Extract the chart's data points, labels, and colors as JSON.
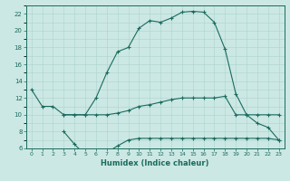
{
  "title": "",
  "xlabel": "Humidex (Indice chaleur)",
  "bg_color": "#cce8e4",
  "line_color": "#1a6b5e",
  "grid_color": "#aad4ce",
  "ylim": [
    6,
    23
  ],
  "xlim": [
    -0.5,
    23.5
  ],
  "yticks": [
    6,
    8,
    10,
    12,
    14,
    16,
    18,
    20,
    22
  ],
  "xticks": [
    0,
    1,
    2,
    3,
    4,
    5,
    6,
    7,
    8,
    9,
    10,
    11,
    12,
    13,
    14,
    15,
    16,
    17,
    18,
    19,
    20,
    21,
    22,
    23
  ],
  "line1_x": [
    0,
    1,
    2,
    3,
    4,
    5,
    6,
    7,
    8,
    9,
    10,
    11,
    12,
    13,
    14,
    15,
    16,
    17,
    18,
    19,
    20,
    21,
    22,
    23
  ],
  "line1_y": [
    13,
    11,
    11,
    10,
    10,
    10,
    12,
    15,
    17.5,
    18,
    20.3,
    21.2,
    21.0,
    21.5,
    22.2,
    22.3,
    22.2,
    21.0,
    17.8,
    12.5,
    10,
    9,
    8.5,
    7
  ],
  "line2_x": [
    3,
    4,
    5,
    6,
    7,
    8,
    9,
    10,
    11,
    12,
    13,
    14,
    15,
    16,
    17,
    18,
    19,
    20,
    21,
    22,
    23
  ],
  "line2_y": [
    10,
    10,
    10,
    10,
    10,
    10.2,
    10.5,
    11,
    11.2,
    11.5,
    11.8,
    12,
    12,
    12,
    12,
    12.2,
    10,
    10,
    10,
    10,
    10
  ],
  "line3_x": [
    3,
    4,
    5,
    6,
    7,
    8,
    9,
    10,
    11,
    12,
    13,
    14,
    15,
    16,
    17,
    18,
    19,
    20,
    21,
    22,
    23
  ],
  "line3_y": [
    8,
    6.5,
    5.2,
    5.2,
    5.5,
    6.3,
    7.0,
    7.2,
    7.2,
    7.2,
    7.2,
    7.2,
    7.2,
    7.2,
    7.2,
    7.2,
    7.2,
    7.2,
    7.2,
    7.2,
    7.0
  ]
}
